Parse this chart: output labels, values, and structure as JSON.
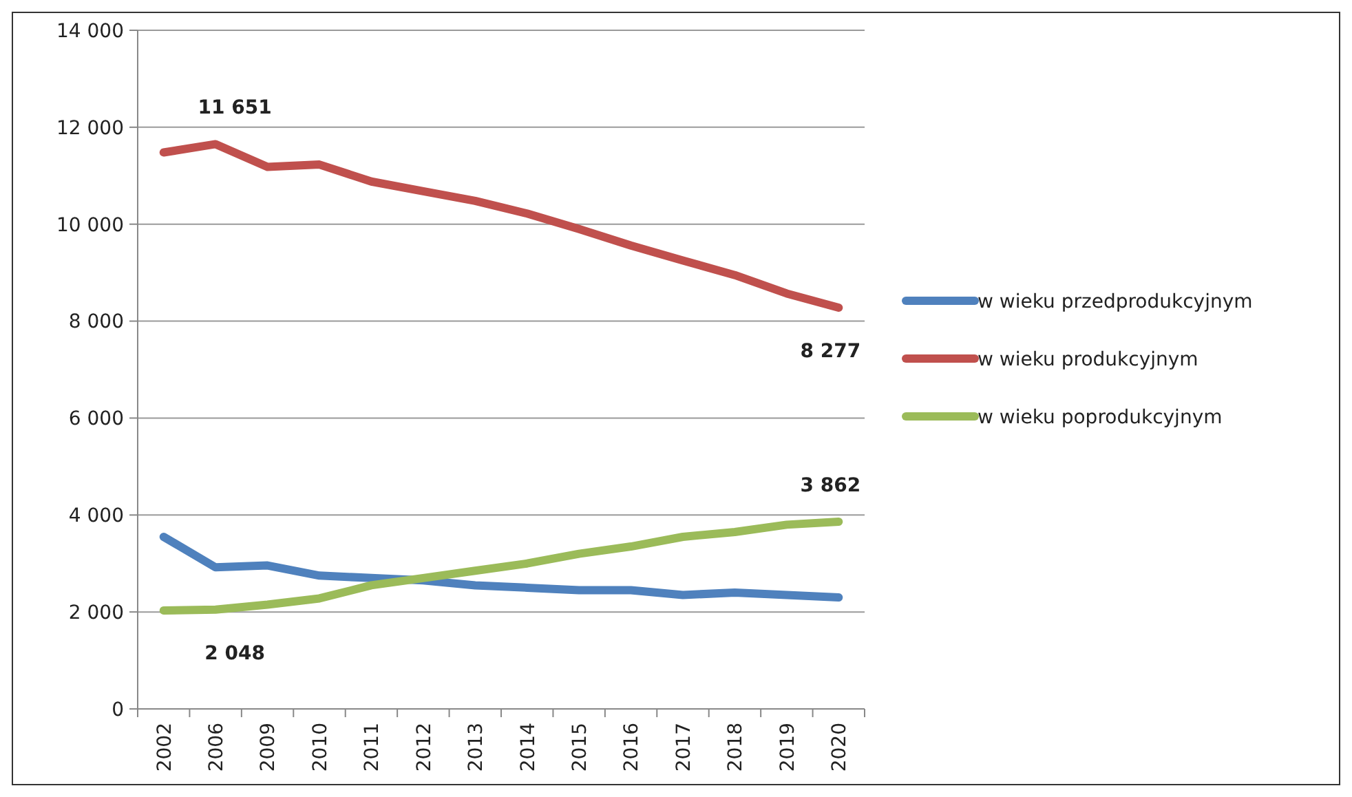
{
  "chart_data": {
    "type": "line",
    "categories": [
      "2002",
      "2006",
      "2009",
      "2010",
      "2011",
      "2012",
      "2013",
      "2014",
      "2015",
      "2016",
      "2017",
      "2018",
      "2019",
      "2020"
    ],
    "series": [
      {
        "name": "w wieku przedprodukcyjnym",
        "color": "#4f81bd",
        "values": [
          3550,
          2920,
          2960,
          2750,
          2700,
          2650,
          2550,
          2500,
          2450,
          2450,
          2350,
          2400,
          2350,
          2300
        ]
      },
      {
        "name": "w wieku produkcyjnym",
        "color": "#c0504d",
        "values": [
          11480,
          11651,
          11180,
          11230,
          10880,
          10680,
          10480,
          10220,
          9900,
          9560,
          9250,
          8950,
          8570,
          8277
        ],
        "value_labels": [
          null,
          "11 651",
          null,
          null,
          null,
          null,
          null,
          null,
          null,
          null,
          null,
          null,
          null,
          "8 277"
        ]
      },
      {
        "name": "w wieku poprodukcyjnym",
        "color": "#9bbb59",
        "values": [
          2030,
          2048,
          2150,
          2280,
          2550,
          2700,
          2850,
          3000,
          3200,
          3350,
          3550,
          3650,
          3800,
          3862
        ],
        "value_labels": [
          null,
          "2 048",
          null,
          null,
          null,
          null,
          null,
          null,
          null,
          null,
          null,
          null,
          null,
          "3 862"
        ]
      }
    ],
    "ylim": [
      0,
      14000
    ],
    "yticks": [
      {
        "value": 0,
        "label": "0"
      },
      {
        "value": 2000,
        "label": "2 000"
      },
      {
        "value": 4000,
        "label": "4 000"
      },
      {
        "value": 6000,
        "label": "6 000"
      },
      {
        "value": 8000,
        "label": "8 000"
      },
      {
        "value": 10000,
        "label": "10 000"
      },
      {
        "value": 12000,
        "label": "12 000"
      },
      {
        "value": 14000,
        "label": "14 000"
      }
    ],
    "grid": "y",
    "legend": "right",
    "marker": "none",
    "line_style": "solid"
  }
}
